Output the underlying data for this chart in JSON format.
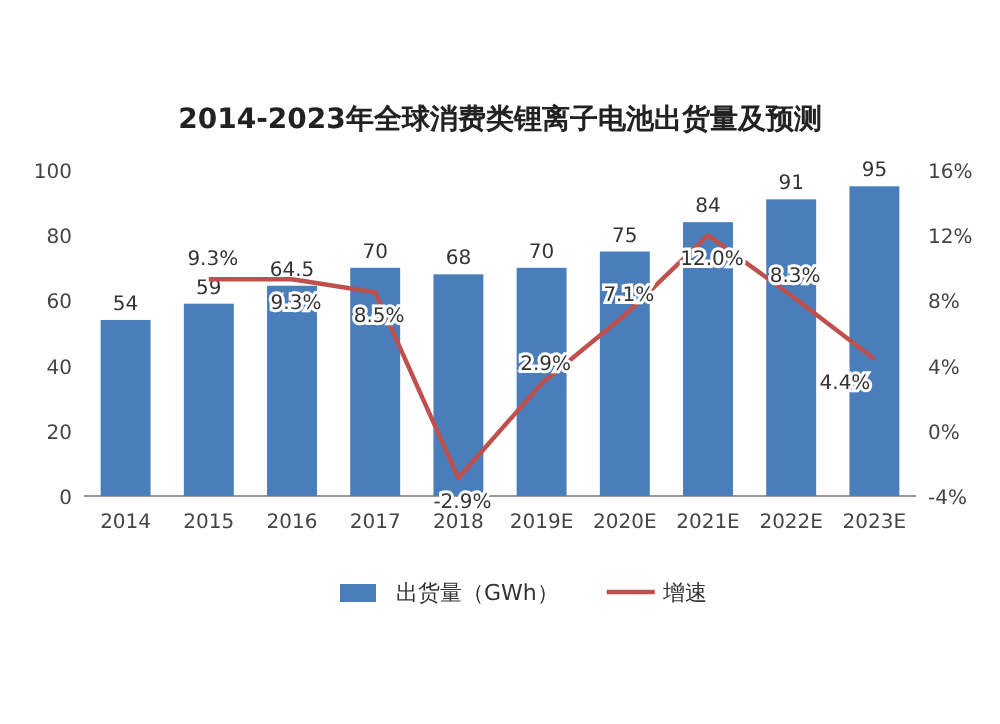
{
  "chart_data": {
    "type": "bar",
    "title": "2014-2023年全球消费类锂离子电池出货量及预测",
    "categories": [
      "2014",
      "2015",
      "2016",
      "2017",
      "2018",
      "2019E",
      "2020E",
      "2021E",
      "2022E",
      "2023E"
    ],
    "series": [
      {
        "name": "出货量（GWh）",
        "color": "#4a7ebb",
        "values": [
          54,
          59,
          64.5,
          70,
          68,
          70,
          75,
          84,
          91,
          95
        ],
        "value_labels": [
          "54",
          "59",
          "64.5",
          "70",
          "68",
          "70",
          "75",
          "84",
          "91",
          "95"
        ]
      },
      {
        "name": "增速",
        "type": "line",
        "axis": "y2",
        "color": "#c0504d",
        "values": [
          null,
          9.3,
          9.3,
          8.5,
          -2.9,
          2.9,
          7.1,
          12.0,
          8.3,
          4.4
        ],
        "value_labels": [
          null,
          "9.3%",
          "9.3%",
          "8.5%",
          "-2.9%",
          "2.9%",
          "7.1%",
          "12.0%",
          "8.3%",
          "4.4%"
        ]
      }
    ],
    "ylim": [
      0,
      100
    ],
    "yticks": [
      0,
      20,
      40,
      60,
      80,
      100
    ],
    "y2lim": [
      -4,
      16
    ],
    "y2ticks": [
      {
        "value": -4,
        "label": "-4%"
      },
      {
        "value": 0,
        "label": "0%"
      },
      {
        "value": 4,
        "label": "4%"
      },
      {
        "value": 8,
        "label": "8%"
      },
      {
        "value": 12,
        "label": "12%"
      },
      {
        "value": 16,
        "label": "16%"
      }
    ],
    "legend": "bottom"
  }
}
